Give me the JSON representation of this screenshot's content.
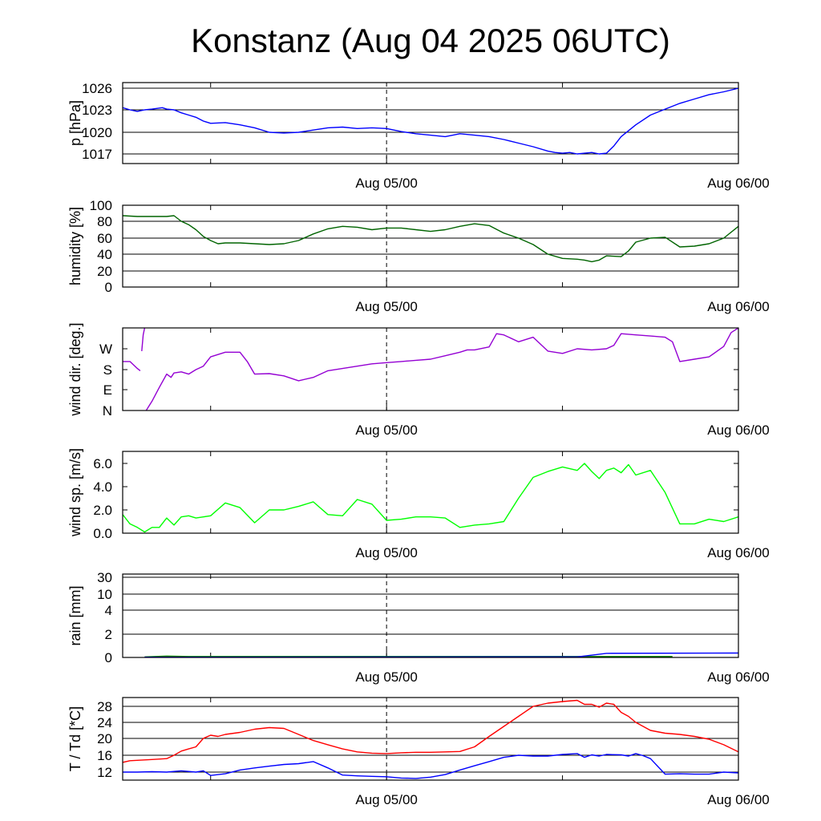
{
  "chart_data": {
    "title": "Konstanz (Aug 04 2025 06UTC)",
    "x_tick_labels": [
      "Aug 05/00",
      "Aug 06/00"
    ],
    "x_unit": "hours since Aug 04 06UTC",
    "x_ticks_hours": [
      18,
      42
    ],
    "xlim": [
      0,
      42
    ],
    "panels": [
      {
        "type": "line",
        "ylabel": "p [hPa]",
        "yticks": [
          "1026",
          "1023",
          "1020",
          "1017"
        ],
        "ytick_values": [
          1026,
          1023,
          1020,
          1017
        ],
        "ylim": [
          1015.6,
          1026.6
        ],
        "grid": true,
        "series": [
          {
            "color": "#0000ff",
            "x": [
              0,
              0.5,
              1,
              1.5,
              2,
              2.7,
              3,
              3.5,
              4,
              4.5,
              5,
              5.5,
              6,
              7,
              8,
              9,
              10,
              11,
              12,
              13,
              14,
              15,
              16,
              17,
              18,
              19,
              20,
              21,
              22,
              23,
              24,
              25,
              26,
              27,
              28,
              29,
              29.5,
              30,
              30.5,
              31,
              31.5,
              32,
              32.5,
              33,
              33.5,
              34,
              35,
              36,
              37,
              38,
              39,
              40,
              41,
              42
            ],
            "y": [
              1023.3,
              1023.0,
              1022.8,
              1023.0,
              1023.1,
              1023.3,
              1023.1,
              1023.0,
              1022.6,
              1022.3,
              1022.0,
              1021.5,
              1021.2,
              1021.3,
              1021.0,
              1020.6,
              1020.0,
              1019.9,
              1020.0,
              1020.3,
              1020.6,
              1020.7,
              1020.5,
              1020.6,
              1020.5,
              1020.1,
              1019.8,
              1019.6,
              1019.4,
              1019.8,
              1019.6,
              1019.4,
              1019.0,
              1018.5,
              1018.0,
              1017.4,
              1017.2,
              1017.1,
              1017.2,
              1017.0,
              1017.1,
              1017.2,
              1017.0,
              1017.1,
              1018.1,
              1019.4,
              1021.0,
              1022.3,
              1023.1,
              1023.9,
              1024.5,
              1025.1,
              1025.5,
              1026.0
            ]
          }
        ]
      },
      {
        "type": "line",
        "ylabel": "humidity [%]",
        "yticks": [
          "100",
          "80",
          "60",
          "40",
          "20",
          "0"
        ],
        "ytick_values": [
          100,
          80,
          60,
          40,
          20,
          0
        ],
        "ylim": [
          0,
          100
        ],
        "grid": true,
        "series": [
          {
            "color": "#006400",
            "x": [
              0,
              1,
              2,
              3,
              3.5,
              4,
              4.5,
              5,
              5.5,
              6,
              6.5,
              7,
              8,
              9,
              10,
              11,
              12,
              13,
              14,
              15,
              16,
              17,
              18,
              19,
              20,
              21,
              22,
              23,
              24,
              25,
              26,
              27,
              28,
              29,
              30,
              31,
              31.5,
              32,
              32.5,
              33,
              34,
              34.5,
              35,
              36,
              37,
              38,
              39,
              40,
              41,
              42
            ],
            "y": [
              87,
              86,
              86,
              86,
              87,
              80,
              76,
              70,
              62,
              57,
              53,
              54,
              54,
              53,
              52,
              53,
              57,
              65,
              71,
              74,
              73,
              70,
              72,
              72,
              70,
              68,
              70,
              74,
              77,
              75,
              66,
              60,
              52,
              40,
              35,
              34,
              33,
              31,
              33,
              38,
              37,
              44,
              55,
              60,
              61,
              49,
              50,
              53,
              60,
              74
            ]
          }
        ]
      },
      {
        "type": "line",
        "ylabel": "wind dir. [deg.]",
        "yticks": [
          "W",
          "S",
          "E",
          "N"
        ],
        "ytick_values": [
          270,
          180,
          90,
          0
        ],
        "ylim": [
          0,
          360
        ],
        "grid": false,
        "series": [
          {
            "color": "#9400d3",
            "x": [
              0,
              0.5,
              1,
              1.2
            ],
            "y": [
              215,
              215,
              185,
              175
            ]
          },
          {
            "color": "#9400d3",
            "x": [
              1.3,
              1.4,
              1.5
            ],
            "y": [
              260,
              330,
              360
            ]
          },
          {
            "color": "#9400d3",
            "x": [
              1.6,
              2,
              2.5,
              3,
              3.3,
              3.5,
              4,
              4.5,
              5,
              5.5,
              6,
              7,
              8,
              8.5,
              9,
              10,
              11,
              12,
              13,
              14,
              15,
              16,
              17,
              18,
              19,
              20,
              21,
              22,
              23,
              23.5,
              24,
              25,
              25.5,
              26,
              27,
              28,
              29,
              30,
              31,
              32,
              33,
              33.5,
              34,
              35,
              36,
              37,
              37.5,
              38,
              39,
              40,
              41,
              41.5,
              42
            ],
            "y": [
              0,
              40,
              100,
              160,
              145,
              165,
              170,
              160,
              180,
              195,
              235,
              255,
              255,
              215,
              160,
              162,
              152,
              130,
              145,
              175,
              185,
              195,
              205,
              210,
              215,
              220,
              225,
              240,
              255,
              265,
              265,
              278,
              335,
              330,
              300,
              320,
              260,
              250,
              270,
              265,
              270,
              285,
              335,
              330,
              325,
              320,
              300,
              215,
              225,
              235,
              280,
              340,
              360
            ]
          }
        ]
      },
      {
        "type": "line",
        "ylabel": "wind sp. [m/s]",
        "yticks": [
          "6.0",
          "4.0",
          "2.0",
          "0.0"
        ],
        "ytick_values": [
          6.0,
          4.0,
          2.0,
          0.0
        ],
        "ylim": [
          0,
          7.0
        ],
        "grid": false,
        "series": [
          {
            "color": "#00ff00",
            "x": [
              0,
              0.5,
              1,
              1.5,
              2,
              2.5,
              3,
              3.5,
              4,
              4.5,
              5,
              5.5,
              6,
              7,
              8,
              9,
              10,
              11,
              12,
              13,
              14,
              15,
              16,
              17,
              18,
              19,
              20,
              21,
              22,
              23,
              24,
              25,
              26,
              27,
              28,
              29,
              30,
              31,
              31.5,
              32,
              32.5,
              33,
              33.5,
              34,
              34.5,
              35,
              36,
              37,
              38,
              39,
              40,
              41,
              42
            ],
            "y": [
              1.6,
              0.8,
              0.5,
              0.1,
              0.5,
              0.5,
              1.3,
              0.7,
              1.4,
              1.5,
              1.3,
              1.4,
              1.5,
              2.6,
              2.2,
              0.9,
              2.0,
              2.0,
              2.3,
              2.7,
              1.6,
              1.5,
              2.9,
              2.5,
              1.1,
              1.2,
              1.4,
              1.4,
              1.3,
              0.5,
              0.7,
              0.8,
              1.0,
              3.0,
              4.8,
              5.3,
              5.7,
              5.4,
              6.0,
              5.3,
              4.7,
              5.4,
              5.6,
              5.2,
              5.9,
              5.0,
              5.4,
              3.5,
              0.8,
              0.8,
              1.2,
              1.0,
              1.4
            ]
          }
        ]
      },
      {
        "type": "line",
        "ylabel": "rain [mm]",
        "yticks": [
          "30",
          "10",
          "4",
          "2",
          "0"
        ],
        "ytick_values": [
          30,
          10,
          4,
          2,
          0
        ],
        "ylim": [
          0,
          30
        ],
        "grid": true,
        "series": [
          {
            "color": "#008000",
            "x": [
              1.5,
              3,
              4.5,
              37.5
            ],
            "y": [
              0.05,
              0.12,
              0.08,
              0.08
            ]
          },
          {
            "color": "#0000ff",
            "x": [
              1.5,
              31,
              33,
              42
            ],
            "y": [
              0.02,
              0.05,
              0.35,
              0.38
            ]
          }
        ]
      },
      {
        "type": "line",
        "ylabel": "T / Td [*C]",
        "yticks": [
          "28",
          "24",
          "20",
          "16",
          "12"
        ],
        "ytick_values": [
          28,
          24,
          20,
          16,
          12
        ],
        "ylim": [
          10,
          30.4
        ],
        "grid": true,
        "series": [
          {
            "color": "#ff0000",
            "x": [
              0,
              0.5,
              1,
              2,
              3,
              3.5,
              4,
              4.5,
              5,
              5.5,
              6,
              6.5,
              7,
              8,
              9,
              10,
              11,
              12,
              13,
              14,
              15,
              16,
              17,
              18,
              19,
              20,
              21,
              22,
              23,
              24,
              25,
              26,
              27,
              28,
              29,
              30,
              31,
              31.5,
              32,
              32.5,
              33,
              33.5,
              34,
              34.5,
              35,
              36,
              37,
              38,
              39,
              40,
              41,
              42
            ],
            "y": [
              14.3,
              14.7,
              14.8,
              15.0,
              15.2,
              16.0,
              17.0,
              17.5,
              18.0,
              20.0,
              20.8,
              20.5,
              21.0,
              21.5,
              22.3,
              22.7,
              22.5,
              21.0,
              19.5,
              18.5,
              17.5,
              16.8,
              16.5,
              16.4,
              16.6,
              16.7,
              16.7,
              16.8,
              16.9,
              18.0,
              20.5,
              23.0,
              25.5,
              28.0,
              28.8,
              29.2,
              29.5,
              28.5,
              28.5,
              27.8,
              28.8,
              28.5,
              26.5,
              25.5,
              24.0,
              22.0,
              21.3,
              21.0,
              20.5,
              19.8,
              18.5,
              16.8
            ]
          },
          {
            "color": "#0000ff",
            "x": [
              0,
              1,
              2,
              3,
              4,
              5,
              5.5,
              6,
              7,
              8,
              9,
              10,
              11,
              12,
              13,
              14,
              15,
              16,
              17,
              18,
              19,
              20,
              21,
              22,
              23,
              24,
              25,
              26,
              27,
              28,
              29,
              30,
              31,
              31.5,
              32,
              32.5,
              33,
              34,
              34.5,
              35,
              35.5,
              36,
              37,
              38,
              39,
              40,
              41,
              42
            ],
            "y": [
              12.0,
              12.0,
              12.1,
              12.0,
              12.3,
              12.0,
              12.3,
              11.2,
              11.6,
              12.5,
              13.0,
              13.4,
              13.8,
              14.0,
              14.5,
              13.0,
              11.3,
              11.1,
              11.0,
              10.9,
              10.6,
              10.5,
              10.8,
              11.4,
              12.5,
              13.5,
              14.5,
              15.5,
              16.0,
              15.8,
              15.8,
              16.2,
              16.4,
              15.5,
              16.1,
              15.8,
              16.2,
              16.1,
              15.8,
              16.4,
              15.9,
              15.2,
              11.5,
              11.6,
              11.5,
              11.5,
              12.0,
              11.8
            ]
          }
        ]
      }
    ]
  }
}
